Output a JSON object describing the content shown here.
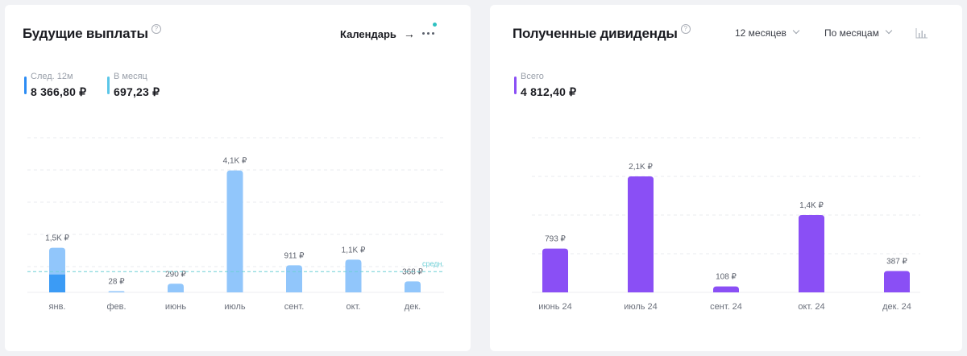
{
  "future": {
    "title": "Будущие выплаты",
    "help_icon": "?",
    "calendar_label": "Календарь",
    "calendar_arrow": "→",
    "stats": [
      {
        "label": "След. 12м",
        "value": "8 366,80 ₽",
        "color": "#2c8cf4"
      },
      {
        "label": "В месяц",
        "value": "697,23 ₽",
        "color": "#5bc6e8"
      }
    ],
    "avg_label": "средн.",
    "colors": {
      "bar": "#91c6fb",
      "bar_dark": "#3b9bf5",
      "avg_line": "#6ccfd6"
    }
  },
  "received": {
    "title": "Полученные дивиденды",
    "help_icon": "?",
    "period_dropdown": "12 месяцев",
    "group_dropdown": "По месяцам",
    "chart_type_icon": "bar-chart-icon",
    "stats": [
      {
        "label": "Всего",
        "value": "4 812,40 ₽",
        "color": "#8a4ff5"
      }
    ],
    "colors": {
      "bar": "#8a4ff5"
    }
  },
  "chart_data": [
    {
      "type": "bar",
      "categories": [
        "янв.",
        "фев.",
        "июнь",
        "июль",
        "сент.",
        "окт.",
        "дек."
      ],
      "values": [
        1500,
        28,
        290,
        4100,
        911,
        1100,
        368
      ],
      "secondary_values": [
        600,
        0,
        0,
        0,
        0,
        0,
        0
      ],
      "data_labels": [
        "1,5K ₽",
        "28 ₽",
        "290 ₽",
        "4,1K ₽",
        "911 ₽",
        "1,1K ₽",
        "368 ₽"
      ],
      "average": 697.23,
      "average_label": "средн.",
      "ylim": [
        0,
        5200
      ],
      "grid": true
    },
    {
      "type": "bar",
      "categories": [
        "июнь 24",
        "июль 24",
        "сент. 24",
        "окт. 24",
        "дек. 24"
      ],
      "values": [
        793,
        2100,
        108,
        1400,
        387
      ],
      "data_labels": [
        "793 ₽",
        "2,1K ₽",
        "108 ₽",
        "1,4K ₽",
        "387 ₽"
      ],
      "ylim": [
        0,
        2800
      ],
      "grid": true
    }
  ]
}
